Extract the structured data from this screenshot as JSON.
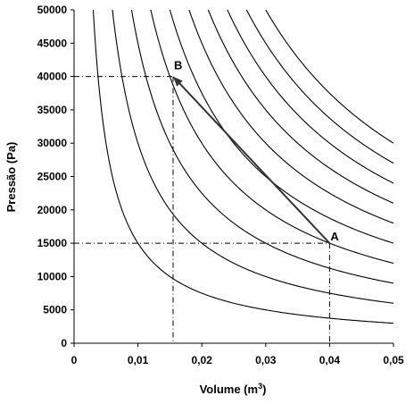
{
  "chart_data": {
    "type": "line",
    "xlabel": "Volume (m",
    "xlabel_sup": "3",
    "xlabel_suffix": ")",
    "ylabel": "Pressão (Pa)",
    "xlim": [
      0,
      0.05
    ],
    "ylim": [
      0,
      50000
    ],
    "x_ticks": [
      0,
      0.01,
      0.02,
      0.03,
      0.04,
      0.05
    ],
    "x_tick_labels": [
      "0",
      "0,01",
      "0,02",
      "0,03",
      "0,04",
      "0,05"
    ],
    "y_ticks": [
      0,
      5000,
      10000,
      15000,
      20000,
      25000,
      30000,
      35000,
      40000,
      45000,
      50000
    ],
    "y_tick_labels": [
      "0",
      "5000",
      "10000",
      "15000",
      "20000",
      "25000",
      "30000",
      "35000",
      "40000",
      "45000",
      "50000"
    ],
    "grid": false,
    "isotherms_pv_constant": [
      150,
      300,
      450,
      600,
      750,
      900,
      1050,
      1200,
      1350,
      1500
    ],
    "points": [
      {
        "label": "A",
        "x": 0.04,
        "y": 15000
      },
      {
        "label": "B",
        "x": 0.0155,
        "y": 40000
      }
    ],
    "process_arrow": {
      "from": "A",
      "to": "B"
    },
    "colors": {
      "curves": "#000000",
      "arrow": "#333333",
      "guides": "#000000"
    }
  }
}
